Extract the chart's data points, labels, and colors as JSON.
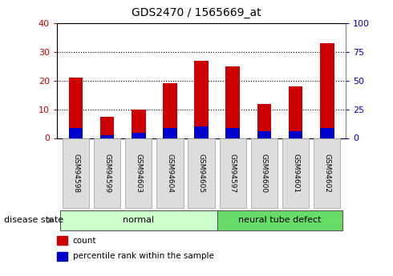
{
  "title": "GDS2470 / 1565669_at",
  "samples": [
    "GSM94598",
    "GSM94599",
    "GSM94603",
    "GSM94604",
    "GSM94605",
    "GSM94597",
    "GSM94600",
    "GSM94601",
    "GSM94602"
  ],
  "count_values": [
    21,
    7.5,
    10,
    19,
    27,
    25,
    12,
    18,
    33
  ],
  "percentile_values": [
    8.5,
    2.2,
    4.5,
    8.5,
    10,
    8.5,
    5.8,
    6,
    8.5
  ],
  "bar_color": "#cc0000",
  "percentile_color": "#0000cc",
  "groups": [
    {
      "label": "normal",
      "indices": [
        0,
        1,
        2,
        3,
        4
      ],
      "color": "#ccffcc"
    },
    {
      "label": "neural tube defect",
      "indices": [
        5,
        6,
        7,
        8
      ],
      "color": "#66dd66"
    }
  ],
  "ylim_left": [
    0,
    40
  ],
  "ylim_right": [
    0,
    100
  ],
  "yticks_left": [
    0,
    10,
    20,
    30,
    40
  ],
  "yticks_right": [
    0,
    25,
    50,
    75,
    100
  ],
  "left_tick_color": "#cc0000",
  "right_tick_color": "#0000cc",
  "background_color": "#ffffff",
  "bar_width": 0.45,
  "legend_items": [
    {
      "label": "count",
      "color": "#cc0000"
    },
    {
      "label": "percentile rank within the sample",
      "color": "#0000cc"
    }
  ],
  "disease_state_label": "disease state"
}
